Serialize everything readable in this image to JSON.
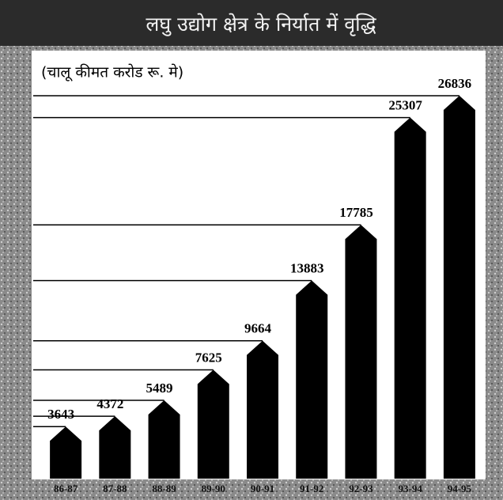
{
  "chart_data": {
    "type": "bar",
    "title": "लघु उद्योग क्षेत्र के निर्यात में वृद्धि",
    "subtitle": "(चालू कीमत करोड रू. मे)",
    "categories": [
      "86-87",
      "87-88",
      "88-89",
      "89-90",
      "90-91",
      "91-92",
      "92-93",
      "93-94",
      "94-95"
    ],
    "values": [
      3643,
      4372,
      5489,
      7625,
      9664,
      13883,
      17785,
      25307,
      26836
    ],
    "color": "#000000",
    "ylim": [
      0,
      28000
    ]
  }
}
